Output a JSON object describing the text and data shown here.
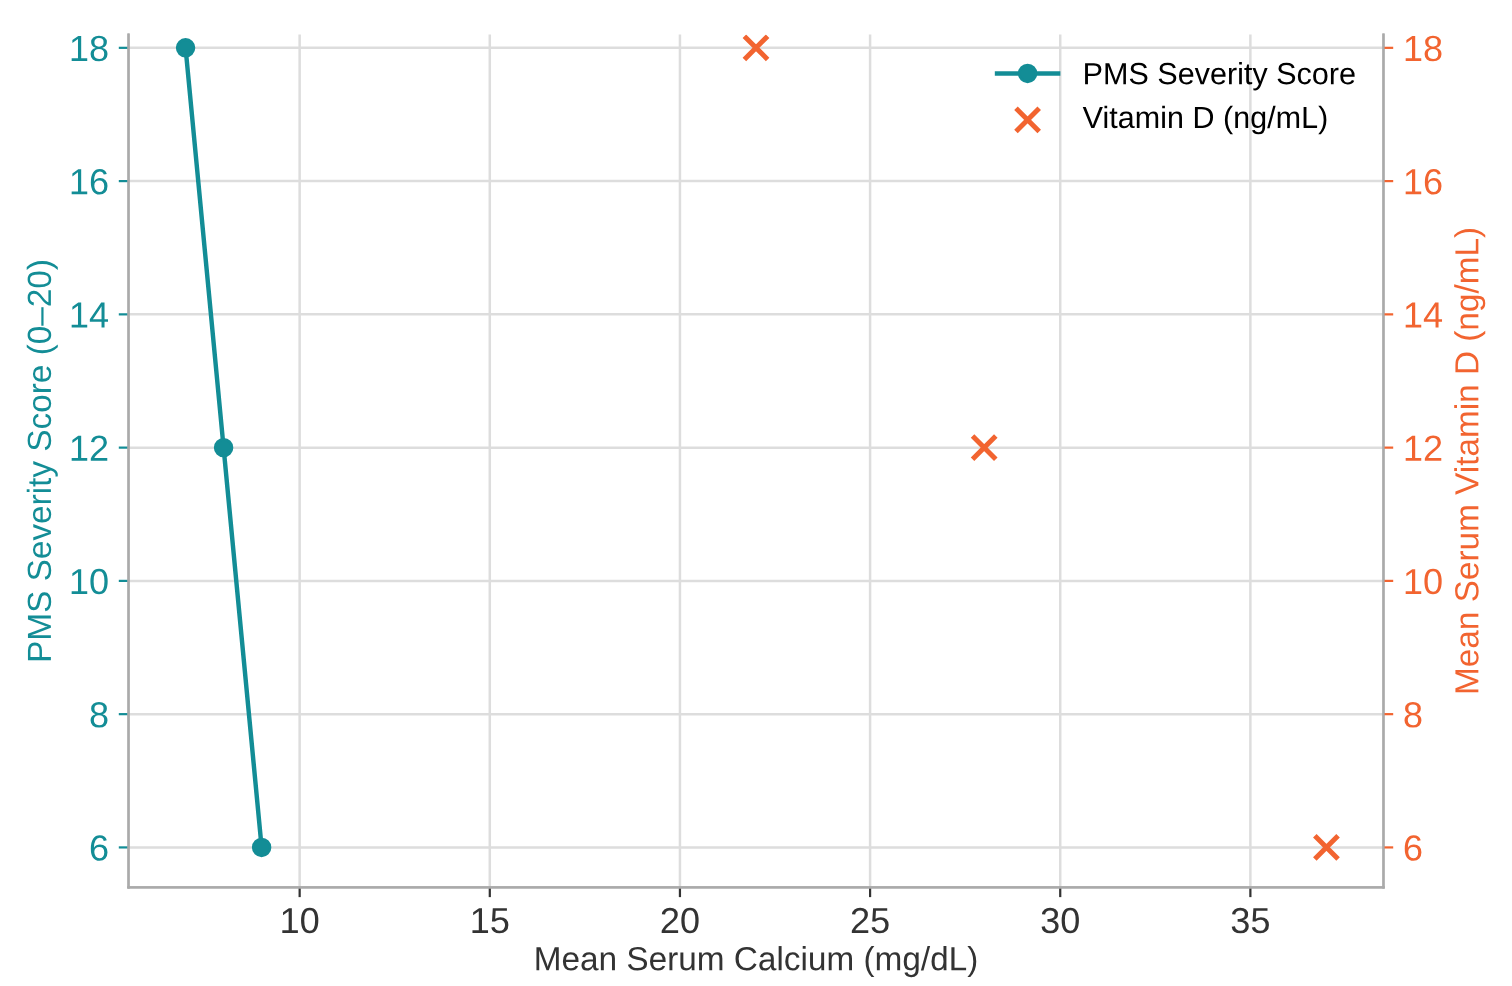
{
  "chart_data": {
    "type": "line",
    "xlabel": "Mean Serum Calcium (mg/dL)",
    "ylabel": "PMS Severity Score (0–20)",
    "y2label": "Mean Serum Vitamin D (ng/mL)",
    "series": [
      {
        "name": "PMS Severity Score",
        "color": "#138d96",
        "marker": "circle",
        "x": [
          7,
          8,
          9
        ],
        "values": [
          18,
          12,
          6
        ]
      },
      {
        "name": "Vitamin D (ng/mL)",
        "type": "scatter",
        "axis": "y2",
        "color": "#f26430",
        "marker": "cross",
        "x": [
          22,
          28,
          37
        ],
        "values": [
          18,
          12,
          6
        ]
      }
    ],
    "xlim": [
      5.5,
      38.5
    ],
    "xticks": [
      10,
      15,
      20,
      25,
      30,
      35
    ],
    "ylim": [
      5.4,
      18.2
    ],
    "yticks": [
      6,
      8,
      10,
      12,
      14,
      16,
      18
    ],
    "y2lim": [
      5.4,
      18.2
    ],
    "y2ticks": [
      6,
      8,
      10,
      12,
      14,
      16,
      18
    ],
    "grid": true,
    "legend": "top right"
  }
}
